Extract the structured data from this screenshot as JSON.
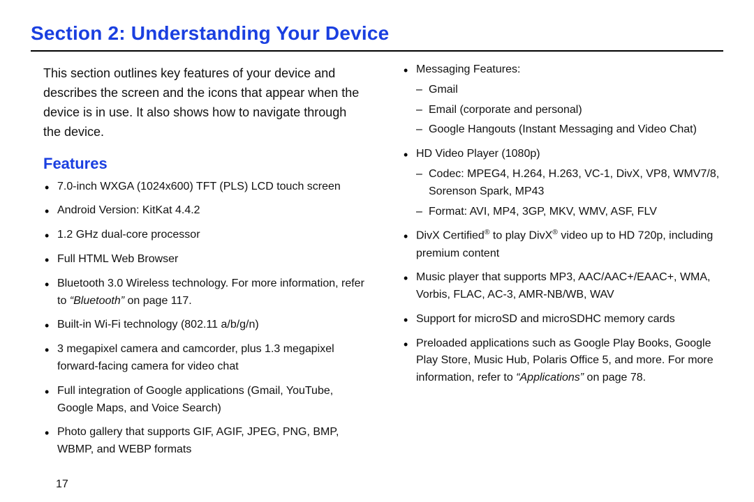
{
  "title": "Section 2: Understanding Your Device",
  "intro": "This section outlines key features of your device and describes the screen and the icons that appear when the device is in use. It also shows how to navigate through the device.",
  "features_heading": "Features",
  "page_number": "17",
  "colors": {
    "heading_blue": "#1a3fe0",
    "text": "#111111",
    "rule": "#000000",
    "background": "#ffffff"
  },
  "typography": {
    "section_title_fontsize_pt": 21,
    "features_heading_fontsize_pt": 17,
    "body_fontsize_pt": 13,
    "list_fontsize_pt": 12,
    "font_family": "Arial"
  },
  "left_column": {
    "items": [
      "7.0-inch WXGA (1024x600) TFT (PLS) LCD touch screen",
      "Android Version: KitKat 4.4.2",
      "1.2 GHz dual-core processor",
      "Full HTML Web Browser"
    ],
    "bluetooth_prefix": "Bluetooth 3.0 Wireless technology. For more information, refer to ",
    "bluetooth_ref": "“Bluetooth”",
    "bluetooth_suffix": " on page 117.",
    "wifi": "Built-in Wi-Fi technology (802.11 a/b/g/n)",
    "camera": "3 megapixel camera and camcorder, plus 1.3 megapixel forward-facing camera for video chat",
    "google_integration": "Full integration of Google applications (Gmail, YouTube, Google Maps, and Voice Search)",
    "photo_gallery": "Photo gallery that supports GIF, AGIF, JPEG, PNG, BMP, WBMP, and WEBP formats"
  },
  "right_column": {
    "messaging_label": "Messaging Features:",
    "messaging_items": [
      "Gmail",
      "Email (corporate and personal)",
      "Google Hangouts (Instant Messaging and Video Chat)"
    ],
    "hd_video_label": "HD Video Player (1080p)",
    "hd_video_items": [
      "Codec: MPEG4, H.264, H.263, VC-1, DivX, VP8, WMV7/8, Sorenson Spark, MP43",
      "Format: AVI, MP4, 3GP, MKV, WMV, ASF, FLV"
    ],
    "divx_prefix": "DivX Certified",
    "divx_mid": " to play DivX",
    "divx_suffix": " video up to HD 720p, including premium content",
    "music_player": "Music player that supports MP3, AAC/AAC+/EAAC+, WMA, Vorbis, FLAC, AC-3, AMR-NB/WB, WAV",
    "microsd": "Support for microSD and microSDHC memory cards",
    "preloaded_line1": "Preloaded applications such as Google Play Books, Google Play Store, Music Hub, Polaris Office 5, and more. For more information, refer to ",
    "preloaded_ref": "“Applications”",
    "preloaded_line2": " on page 78."
  }
}
